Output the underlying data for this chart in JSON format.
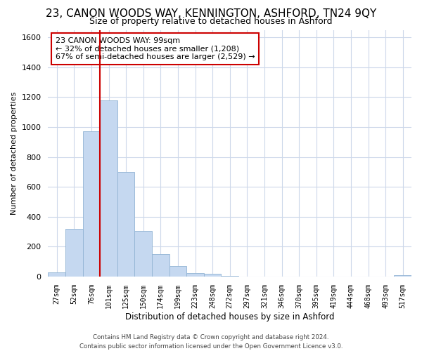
{
  "title": "23, CANON WOODS WAY, KENNINGTON, ASHFORD, TN24 9QY",
  "subtitle": "Size of property relative to detached houses in Ashford",
  "xlabel": "Distribution of detached houses by size in Ashford",
  "ylabel": "Number of detached properties",
  "bar_labels": [
    "27sqm",
    "52sqm",
    "76sqm",
    "101sqm",
    "125sqm",
    "150sqm",
    "174sqm",
    "199sqm",
    "223sqm",
    "248sqm",
    "272sqm",
    "297sqm",
    "321sqm",
    "346sqm",
    "370sqm",
    "395sqm",
    "419sqm",
    "444sqm",
    "468sqm",
    "493sqm",
    "517sqm"
  ],
  "bar_values": [
    30,
    320,
    970,
    1180,
    700,
    305,
    150,
    70,
    25,
    18,
    5,
    2,
    1,
    1,
    0,
    0,
    0,
    0,
    0,
    0,
    10
  ],
  "bar_color": "#c5d8f0",
  "bar_edge_color": "#92b4d4",
  "vline_x_idx": 3,
  "vline_color": "#cc0000",
  "ylim": [
    0,
    1650
  ],
  "yticks": [
    0,
    200,
    400,
    600,
    800,
    1000,
    1200,
    1400,
    1600
  ],
  "annotation_title": "23 CANON WOODS WAY: 99sqm",
  "annotation_line1": "← 32% of detached houses are smaller (1,208)",
  "annotation_line2": "67% of semi-detached houses are larger (2,529) →",
  "annotation_box_color": "#ffffff",
  "annotation_box_edge": "#cc0000",
  "footer_line1": "Contains HM Land Registry data © Crown copyright and database right 2024.",
  "footer_line2": "Contains public sector information licensed under the Open Government Licence v3.0.",
  "background_color": "#ffffff",
  "grid_color": "#cdd8ea"
}
